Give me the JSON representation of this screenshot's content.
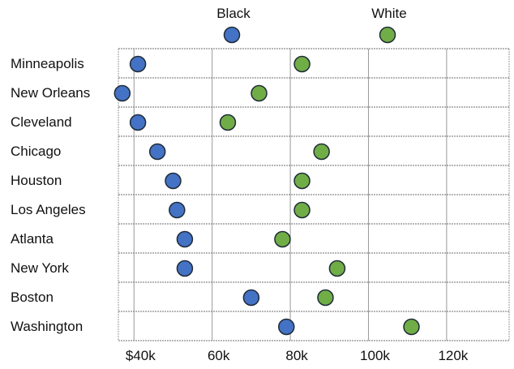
{
  "chart_data": {
    "type": "scatter",
    "subtype": "dot-plot",
    "title": "",
    "xlabel": "",
    "ylabel": "",
    "x_range": [
      36,
      136
    ],
    "x_ticks": [
      {
        "value": 40,
        "label": "$40k"
      },
      {
        "value": 60,
        "label": "60k"
      },
      {
        "value": 80,
        "label": "80k"
      },
      {
        "value": 100,
        "label": "100k"
      },
      {
        "value": 120,
        "label": "120k"
      }
    ],
    "legend": {
      "placement": "top",
      "items": [
        {
          "name": "Black",
          "color": "#4472C4"
        },
        {
          "name": "White",
          "color": "#70AD47"
        }
      ]
    },
    "categories": [
      "Minneapolis",
      "New Orleans",
      "Cleveland",
      "Chicago",
      "Houston",
      "Los Angeles",
      "Atlanta",
      "New York",
      "Boston",
      "Washington"
    ],
    "series": [
      {
        "name": "Black",
        "color": "#4472C4",
        "values": [
          41,
          37,
          41,
          46,
          50,
          51,
          53,
          53,
          70,
          79
        ]
      },
      {
        "name": "White",
        "color": "#70AD47",
        "values": [
          83,
          72,
          64,
          88,
          83,
          83,
          78,
          92,
          89,
          111
        ]
      }
    ],
    "grid": true
  }
}
